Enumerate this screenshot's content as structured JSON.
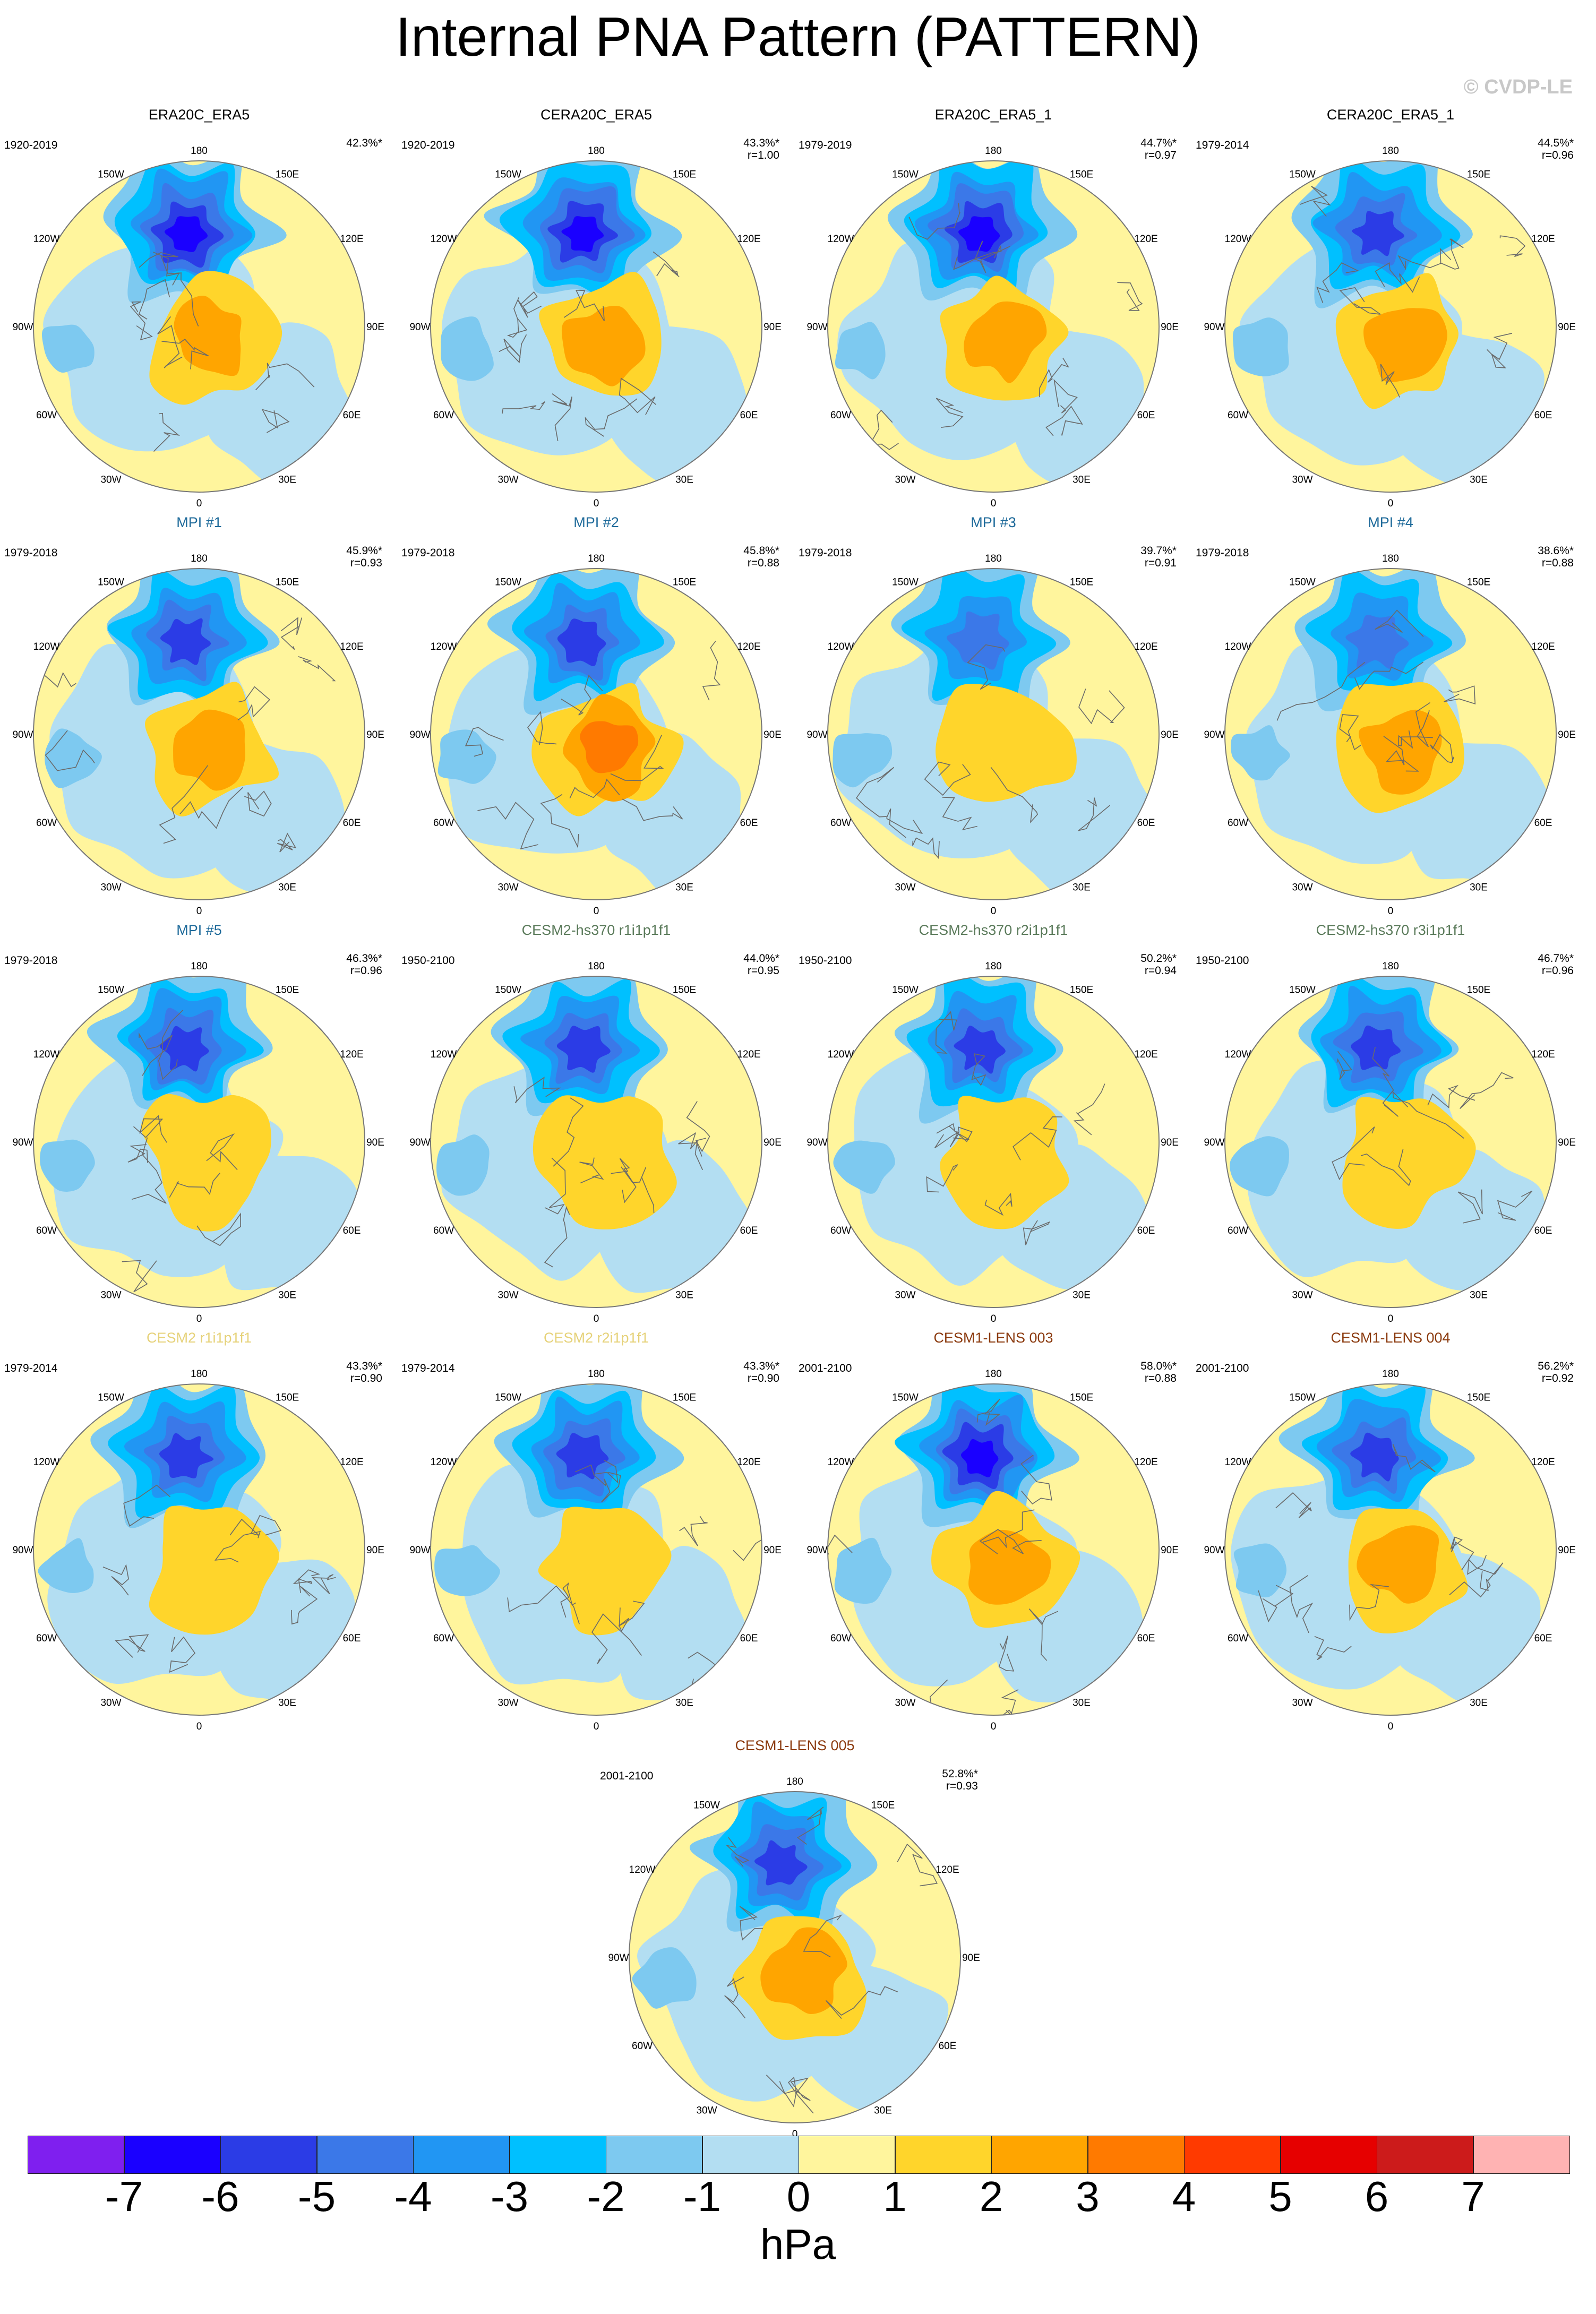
{
  "figure": {
    "title": "Internal PNA Pattern (PATTERN)",
    "watermark": "© CVDP-LE",
    "colors": {
      "obs_title": "#000000",
      "mpi_title": "#1e6a9a",
      "cesm2_hs_title": "#5a7a5a",
      "cesm2_title": "#e6d27a",
      "cesm1_title": "#8b3a0e",
      "coast": "#6a6a6a"
    }
  },
  "longitude_labels": [
    "180",
    "150E",
    "120E",
    "90E",
    "60E",
    "30E",
    "0",
    "30W",
    "60W",
    "90W",
    "120W",
    "150W"
  ],
  "panels": [
    {
      "title": "ERA20C_ERA5",
      "years": "1920-2019",
      "pct": "42.3%*",
      "r": "",
      "group": "obs",
      "neg": 6.0,
      "pos": 2.2
    },
    {
      "title": "CERA20C_ERA5",
      "years": "1920-2019",
      "pct": "43.3%*",
      "r": "r=1.00",
      "group": "obs",
      "neg": 6.0,
      "pos": 2.2
    },
    {
      "title": "ERA20C_ERA5_1",
      "years": "1979-2019",
      "pct": "44.7%*",
      "r": "r=0.97",
      "group": "obs",
      "neg": 6.0,
      "pos": 2.3
    },
    {
      "title": "CERA20C_ERA5_1",
      "years": "1979-2014",
      "pct": "44.5%*",
      "r": "r=0.96",
      "group": "obs",
      "neg": 5.5,
      "pos": 2.0
    },
    {
      "title": "MPI #1",
      "years": "1979-2018",
      "pct": "45.9%*",
      "r": "r=0.93",
      "group": "mpi",
      "neg": 5.5,
      "pos": 2.6
    },
    {
      "title": "MPI #2",
      "years": "1979-2018",
      "pct": "45.8%*",
      "r": "r=0.88",
      "group": "mpi",
      "neg": 5.0,
      "pos": 3.4
    },
    {
      "title": "MPI #3",
      "years": "1979-2018",
      "pct": "39.7%*",
      "r": "r=0.91",
      "group": "mpi",
      "neg": 4.5,
      "pos": 1.8
    },
    {
      "title": "MPI #4",
      "years": "1979-2018",
      "pct": "38.6%*",
      "r": "r=0.88",
      "group": "mpi",
      "neg": 4.5,
      "pos": 2.8
    },
    {
      "title": "MPI #5",
      "years": "1979-2018",
      "pct": "46.3%*",
      "r": "r=0.96",
      "group": "mpi",
      "neg": 5.5,
      "pos": 1.8
    },
    {
      "title": "CESM2-hs370 r1i1p1f1",
      "years": "1950-2100",
      "pct": "44.0%*",
      "r": "r=0.95",
      "group": "cesm2_hs",
      "neg": 5.0,
      "pos": 1.8
    },
    {
      "title": "CESM2-hs370 r2i1p1f1",
      "years": "1950-2100",
      "pct": "50.2%*",
      "r": "r=0.94",
      "group": "cesm2_hs",
      "neg": 5.5,
      "pos": 1.8
    },
    {
      "title": "CESM2-hs370 r3i1p1f1",
      "years": "1950-2100",
      "pct": "46.7%*",
      "r": "r=0.96",
      "group": "cesm2_hs",
      "neg": 5.0,
      "pos": 1.8
    },
    {
      "title": "CESM2 r1i1p1f1",
      "years": "1979-2014",
      "pct": "43.3%*",
      "r": "r=0.90",
      "group": "cesm2",
      "neg": 5.0,
      "pos": 1.6
    },
    {
      "title": "CESM2 r2i1p1f1",
      "years": "1979-2014",
      "pct": "43.3%*",
      "r": "r=0.90",
      "group": "cesm2",
      "neg": 5.0,
      "pos": 1.6
    },
    {
      "title": "CESM1-LENS 003",
      "years": "2001-2100",
      "pct": "58.0%*",
      "r": "r=0.88",
      "group": "cesm1",
      "neg": 6.0,
      "pos": 2.7
    },
    {
      "title": "CESM1-LENS 004",
      "years": "2001-2100",
      "pct": "56.2%*",
      "r": "r=0.92",
      "group": "cesm1",
      "neg": 5.5,
      "pos": 2.4
    },
    {
      "title": "CESM1-LENS 005",
      "years": "2001-2100",
      "pct": "52.8%*",
      "r": "r=0.93",
      "group": "cesm1",
      "neg": 5.5,
      "pos": 2.3
    }
  ],
  "colorbar": {
    "labels": [
      "-7",
      "-6",
      "-5",
      "-4",
      "-3",
      "-2",
      "-1",
      "0",
      "1",
      "2",
      "3",
      "4",
      "5",
      "6",
      "7"
    ],
    "colors": [
      "#7f1fef",
      "#1a00ff",
      "#2b3ce6",
      "#3b78e8",
      "#2196f3",
      "#00c0ff",
      "#7dc9f0",
      "#b3def2",
      "#fff59d",
      "#ffd52b",
      "#ffa500",
      "#ff7a00",
      "#ff3a00",
      "#e60000",
      "#cc1b1b",
      "#ffb3b3"
    ],
    "unit": "hPa"
  }
}
